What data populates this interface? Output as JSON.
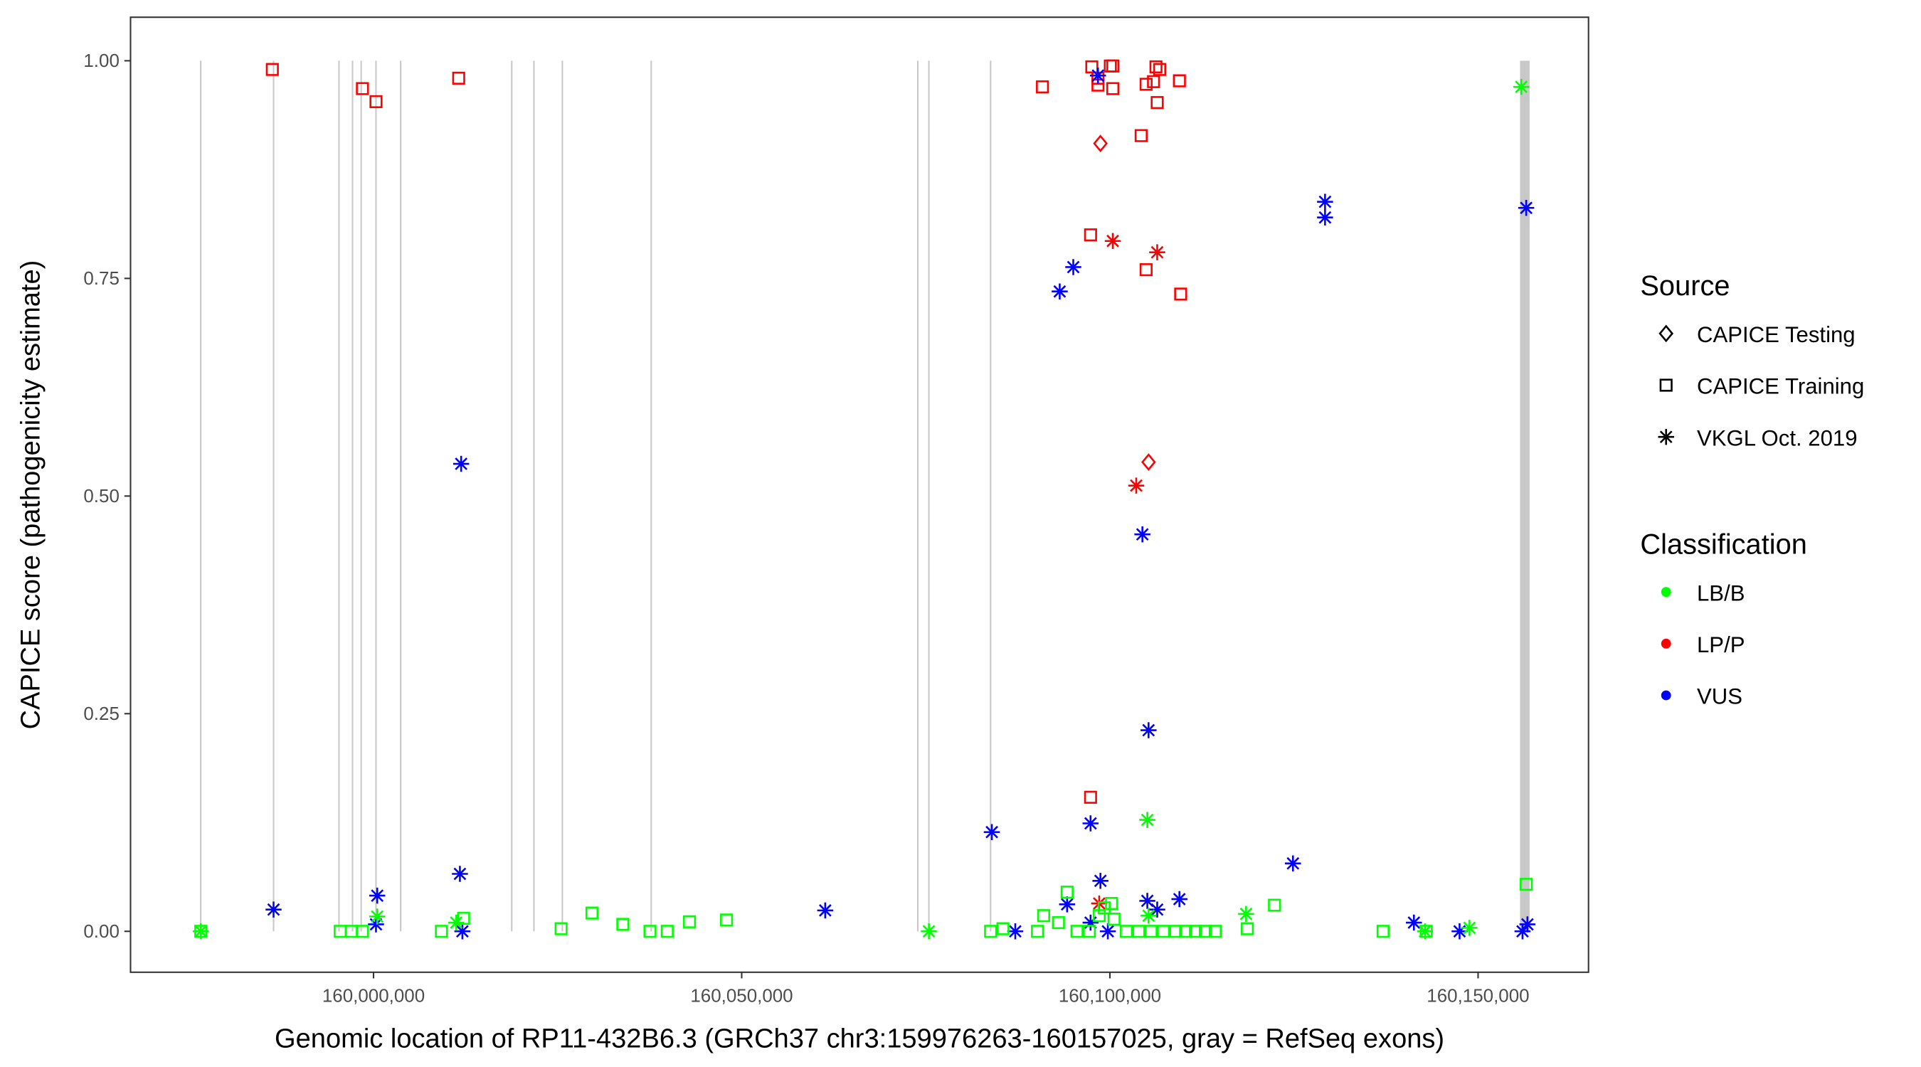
{
  "chart_data": {
    "type": "scatter",
    "xlabel": "Genomic location of RP11-432B6.3 (GRCh37 chr3:159976263-160157025, gray = RefSeq exons)",
    "ylabel": "CAPICE score (pathogenicity estimate)",
    "xlim": [
      159967000,
      160165000
    ],
    "ylim": [
      -0.047,
      1.05
    ],
    "x_ticks": [
      160000000,
      160050000,
      160100000,
      160150000
    ],
    "x_tick_labels": [
      "160,000,000",
      "160,050,000",
      "160,100,000",
      "160,150,000"
    ],
    "y_ticks": [
      0,
      0.25,
      0.5,
      0.75,
      1.0
    ],
    "y_tick_labels": [
      "0.00",
      "0.25",
      "0.50",
      "0.75",
      "1.00"
    ],
    "grid": false,
    "exons": [
      159976536,
      159986424,
      159995307,
      159997151,
      159998324,
      160000335,
      160003687,
      160018771,
      160021788,
      160025643,
      160037710,
      160073912,
      160075420,
      160083800
    ],
    "exon_band": [
      160155700,
      160157000
    ],
    "legend": {
      "placement": "right",
      "source_title": "Source",
      "source_entries": [
        {
          "label": "CAPICE Testing",
          "shape": "diamond"
        },
        {
          "label": "CAPICE Training",
          "shape": "square"
        },
        {
          "label": "VKGL Oct. 2019",
          "shape": "asterisk"
        }
      ],
      "class_title": "Classification",
      "class_entries": [
        {
          "label": "LB/B",
          "color": "#00FF00"
        },
        {
          "label": "LP/P",
          "color": "#FF0000"
        },
        {
          "label": "VUS",
          "color": "#0000FF"
        }
      ]
    },
    "point_fields": [
      "position",
      "score",
      "source_index",
      "class_index"
    ],
    "points": [
      [
        159986257,
        0.99,
        1,
        1
      ],
      [
        159998492,
        0.968,
        1,
        1
      ],
      [
        160000335,
        0.953,
        1,
        1
      ],
      [
        160011564,
        0.98,
        1,
        1
      ],
      [
        160090839,
        0.97,
        1,
        1
      ],
      [
        160097544,
        0.993,
        1,
        1
      ],
      [
        160098381,
        0.98,
        1,
        1
      ],
      [
        160098381,
        0.972,
        1,
        1
      ],
      [
        160100059,
        0.994,
        1,
        1
      ],
      [
        160100394,
        0.994,
        1,
        1
      ],
      [
        160100394,
        0.968,
        1,
        1
      ],
      [
        160104247,
        0.914,
        1,
        1
      ],
      [
        160104918,
        0.973,
        1,
        1
      ],
      [
        160106258,
        0.993,
        1,
        1
      ],
      [
        160106761,
        0.99,
        1,
        1
      ],
      [
        160105923,
        0.976,
        1,
        1
      ],
      [
        160106426,
        0.952,
        1,
        1
      ],
      [
        160109443,
        0.977,
        1,
        1
      ],
      [
        160097376,
        0.8,
        1,
        1
      ],
      [
        160104918,
        0.76,
        1,
        1
      ],
      [
        160109610,
        0.732,
        1,
        1
      ],
      [
        160097376,
        0.154,
        1,
        1
      ],
      [
        160098716,
        0.905,
        0,
        1
      ],
      [
        160105253,
        0.539,
        0,
        1
      ],
      [
        160100394,
        0.793,
        2,
        1
      ],
      [
        160106426,
        0.78,
        2,
        1
      ],
      [
        160103577,
        0.512,
        2,
        1
      ],
      [
        160098549,
        0.032,
        2,
        1
      ],
      [
        160098381,
        0.983,
        2,
        2
      ],
      [
        160129220,
        0.838,
        2,
        2
      ],
      [
        160129220,
        0.82,
        2,
        2
      ],
      [
        160156538,
        0.831,
        2,
        2
      ],
      [
        160095029,
        0.763,
        2,
        2
      ],
      [
        160093186,
        0.735,
        2,
        2
      ],
      [
        160011900,
        0.537,
        2,
        2
      ],
      [
        160104415,
        0.456,
        2,
        2
      ],
      [
        160105253,
        0.231,
        2,
        2
      ],
      [
        160083968,
        0.114,
        2,
        2
      ],
      [
        160097376,
        0.124,
        2,
        2
      ],
      [
        160011732,
        0.066,
        2,
        2
      ],
      [
        160124862,
        0.078,
        2,
        2
      ],
      [
        159986424,
        0.025,
        2,
        2
      ],
      [
        160000503,
        0.041,
        2,
        2
      ],
      [
        160061342,
        0.024,
        2,
        2
      ],
      [
        160098716,
        0.058,
        2,
        2
      ],
      [
        160105085,
        0.035,
        2,
        2
      ],
      [
        160109443,
        0.037,
        2,
        2
      ],
      [
        160094191,
        0.031,
        2,
        2
      ],
      [
        160106426,
        0.025,
        2,
        2
      ],
      [
        160000335,
        0.008,
        2,
        2
      ],
      [
        160012067,
        0.0,
        2,
        2
      ],
      [
        160087152,
        0.0,
        2,
        2
      ],
      [
        160097376,
        0.01,
        2,
        2
      ],
      [
        160099722,
        0.0,
        2,
        2
      ],
      [
        160141287,
        0.01,
        2,
        2
      ],
      [
        160147488,
        0.0,
        2,
        2
      ],
      [
        160156036,
        0.0,
        2,
        2
      ],
      [
        160156706,
        0.008,
        2,
        2
      ],
      [
        160155868,
        0.97,
        2,
        0
      ],
      [
        160105085,
        0.128,
        2,
        0
      ],
      [
        160118493,
        0.02,
        2,
        0
      ],
      [
        160075420,
        0.0,
        2,
        0
      ],
      [
        159976536,
        0.0,
        2,
        0
      ],
      [
        160000503,
        0.017,
        2,
        0
      ],
      [
        160142795,
        0.0,
        2,
        0
      ],
      [
        160148829,
        0.004,
        2,
        0
      ],
      [
        160105253,
        0.018,
        2,
        0
      ],
      [
        160011229,
        0.01,
        2,
        0
      ],
      [
        159976536,
        0.0,
        1,
        0
      ],
      [
        159995475,
        0.0,
        1,
        0
      ],
      [
        159996983,
        0.0,
        1,
        0
      ],
      [
        159998492,
        0.0,
        1,
        0
      ],
      [
        160009218,
        0.0,
        1,
        0
      ],
      [
        160012235,
        0.015,
        1,
        0
      ],
      [
        160025475,
        0.003,
        1,
        0
      ],
      [
        160029665,
        0.021,
        1,
        0
      ],
      [
        160033855,
        0.008,
        1,
        0
      ],
      [
        160037542,
        0.0,
        1,
        0
      ],
      [
        160039889,
        0.0,
        1,
        0
      ],
      [
        160042906,
        0.011,
        1,
        0
      ],
      [
        160047934,
        0.013,
        1,
        0
      ],
      [
        160083800,
        0.0,
        1,
        0
      ],
      [
        160085476,
        0.003,
        1,
        0
      ],
      [
        160090169,
        0.0,
        1,
        0
      ],
      [
        160091007,
        0.018,
        1,
        0
      ],
      [
        160093018,
        0.01,
        1,
        0
      ],
      [
        160094191,
        0.045,
        1,
        0
      ],
      [
        160095532,
        0.0,
        1,
        0
      ],
      [
        160097208,
        0.0,
        1,
        0
      ],
      [
        160098549,
        0.018,
        1,
        0
      ],
      [
        160099218,
        0.027,
        1,
        0
      ],
      [
        160100226,
        0.032,
        1,
        0
      ],
      [
        160100560,
        0.014,
        1,
        0
      ],
      [
        160102236,
        0.0,
        1,
        0
      ],
      [
        160103912,
        0.0,
        1,
        0
      ],
      [
        160105588,
        0.0,
        1,
        0
      ],
      [
        160107264,
        0.0,
        1,
        0
      ],
      [
        160108940,
        0.0,
        1,
        0
      ],
      [
        160110281,
        0.0,
        1,
        0
      ],
      [
        160111622,
        0.0,
        1,
        0
      ],
      [
        160112962,
        0.0,
        1,
        0
      ],
      [
        160114303,
        0.0,
        1,
        0
      ],
      [
        160118661,
        0.003,
        1,
        0
      ],
      [
        160122348,
        0.03,
        1,
        0
      ],
      [
        160137097,
        0.0,
        1,
        0
      ],
      [
        160142963,
        0.0,
        1,
        0
      ],
      [
        160156538,
        0.054,
        1,
        0
      ]
    ]
  }
}
